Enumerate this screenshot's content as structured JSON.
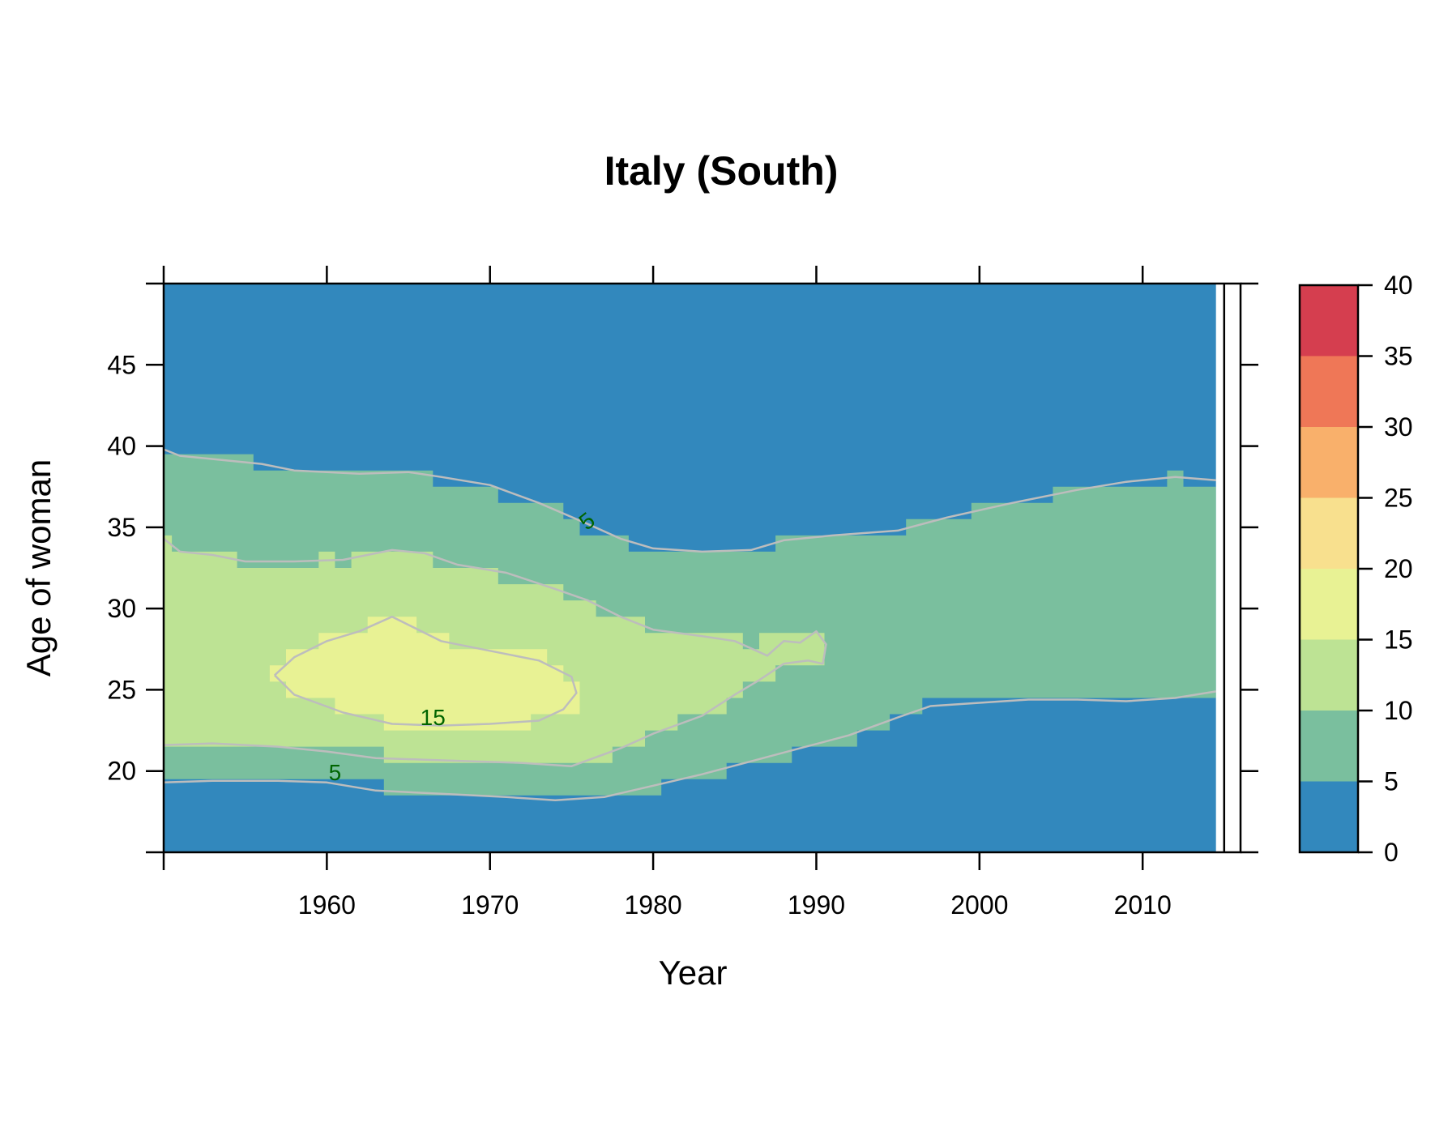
{
  "chart_data": {
    "type": "heatmap",
    "title": "Italy (South)",
    "xlabel": "Year",
    "ylabel": "Age of woman",
    "xlim": [
      1950,
      2016
    ],
    "ylim": [
      15,
      50
    ],
    "xticks": [
      1960,
      1970,
      1980,
      1990,
      2000,
      2010
    ],
    "yticks": [
      20,
      25,
      30,
      35,
      40,
      45
    ],
    "data_end_year": 2014.5,
    "colorbar": {
      "breaks": [
        0,
        5,
        10,
        15,
        20,
        25,
        30,
        35,
        40
      ],
      "tick_labels": [
        "0",
        "5",
        "10",
        "15",
        "20",
        "25",
        "30",
        "35",
        "40"
      ],
      "colors": [
        "#3288bd",
        "#7abf9e",
        "#bde394",
        "#e8f294",
        "#f8e08e",
        "#f9b06b",
        "#ef7757",
        "#d53e4f"
      ]
    },
    "background_color": "#3288bd",
    "regions": [
      {
        "level": "5-10",
        "color": "#7abf9e",
        "upper_bound": [
          [
            1950,
            39.5
          ],
          [
            1955.5,
            39.5
          ],
          [
            1955.5,
            38.5
          ],
          [
            1966.5,
            38.5
          ],
          [
            1966.5,
            37.5
          ],
          [
            1970.5,
            37.5
          ],
          [
            1970.5,
            36.5
          ],
          [
            1974.5,
            36.5
          ],
          [
            1974.5,
            35.5
          ],
          [
            1975.5,
            35.5
          ],
          [
            1975.5,
            34.5
          ],
          [
            1978.5,
            34.5
          ],
          [
            1978.5,
            33.5
          ],
          [
            1987.5,
            33.5
          ],
          [
            1987.5,
            34.5
          ],
          [
            1995.5,
            34.5
          ],
          [
            1995.5,
            35.5
          ],
          [
            1999.5,
            35.5
          ],
          [
            1999.5,
            36.5
          ],
          [
            2004.5,
            36.5
          ],
          [
            2004.5,
            37.5
          ],
          [
            2011.5,
            37.5
          ],
          [
            2011.5,
            38.5
          ],
          [
            2012.5,
            38.5
          ],
          [
            2012.5,
            37.5
          ],
          [
            2014.5,
            37.5
          ]
        ],
        "lower_bound": [
          [
            1950,
            19.5
          ],
          [
            1963.5,
            19.5
          ],
          [
            1963.5,
            18.5
          ],
          [
            1980.5,
            18.5
          ],
          [
            1980.5,
            19.5
          ],
          [
            1984.5,
            19.5
          ],
          [
            1984.5,
            20.5
          ],
          [
            1988.5,
            20.5
          ],
          [
            1988.5,
            21.5
          ],
          [
            1992.5,
            21.5
          ],
          [
            1992.5,
            22.5
          ],
          [
            1994.5,
            22.5
          ],
          [
            1994.5,
            23.5
          ],
          [
            1996.5,
            23.5
          ],
          [
            1996.5,
            24.5
          ],
          [
            2014.5,
            24.5
          ]
        ]
      },
      {
        "level": "10-15",
        "color": "#bde394",
        "outline": [
          [
            1950,
            34.5
          ],
          [
            1950.5,
            34.5
          ],
          [
            1950.5,
            33.5
          ],
          [
            1954.5,
            33.5
          ],
          [
            1954.5,
            32.5
          ],
          [
            1959.5,
            32.5
          ],
          [
            1959.5,
            33.5
          ],
          [
            1960.5,
            33.5
          ],
          [
            1960.5,
            32.5
          ],
          [
            1961.5,
            32.5
          ],
          [
            1961.5,
            33.5
          ],
          [
            1966.5,
            33.5
          ],
          [
            1966.5,
            32.5
          ],
          [
            1970.5,
            32.5
          ],
          [
            1970.5,
            31.5
          ],
          [
            1974.5,
            31.5
          ],
          [
            1974.5,
            30.5
          ],
          [
            1976.5,
            30.5
          ],
          [
            1976.5,
            29.5
          ],
          [
            1979.5,
            29.5
          ],
          [
            1979.5,
            28.5
          ],
          [
            1985.5,
            28.5
          ],
          [
            1985.5,
            27.5
          ],
          [
            1986.5,
            27.5
          ],
          [
            1986.5,
            28.5
          ],
          [
            1990.5,
            28.5
          ],
          [
            1990.5,
            26.5
          ],
          [
            1987.5,
            26.5
          ],
          [
            1987.5,
            25.5
          ],
          [
            1985.5,
            25.5
          ],
          [
            1985.5,
            24.5
          ],
          [
            1984.5,
            24.5
          ],
          [
            1984.5,
            23.5
          ],
          [
            1981.5,
            23.5
          ],
          [
            1981.5,
            22.5
          ],
          [
            1979.5,
            22.5
          ],
          [
            1979.5,
            21.5
          ],
          [
            1977.5,
            21.5
          ],
          [
            1977.5,
            20.5
          ],
          [
            1963.5,
            20.5
          ],
          [
            1963.5,
            21.5
          ],
          [
            1950,
            21.5
          ]
        ]
      },
      {
        "level": "15-20",
        "color": "#e8f294",
        "outline": [
          [
            1956.5,
            25.5
          ],
          [
            1956.5,
            26.5
          ],
          [
            1957.5,
            26.5
          ],
          [
            1957.5,
            27.5
          ],
          [
            1959.5,
            27.5
          ],
          [
            1959.5,
            28.5
          ],
          [
            1962.5,
            28.5
          ],
          [
            1962.5,
            29.5
          ],
          [
            1965.5,
            29.5
          ],
          [
            1965.5,
            28.5
          ],
          [
            1967.5,
            28.5
          ],
          [
            1967.5,
            27.5
          ],
          [
            1973.5,
            27.5
          ],
          [
            1973.5,
            26.5
          ],
          [
            1974.5,
            26.5
          ],
          [
            1974.5,
            25.5
          ],
          [
            1975.5,
            25.5
          ],
          [
            1975.5,
            23.5
          ],
          [
            1972.5,
            23.5
          ],
          [
            1972.5,
            22.5
          ],
          [
            1963.5,
            22.5
          ],
          [
            1963.5,
            23.5
          ],
          [
            1960.5,
            23.5
          ],
          [
            1960.5,
            24.5
          ],
          [
            1957.5,
            24.5
          ],
          [
            1957.5,
            25.5
          ]
        ]
      }
    ],
    "contours": [
      {
        "level": 5,
        "points": [
          [
            1950,
            39.8
          ],
          [
            1951,
            39.4
          ],
          [
            1953,
            39.2
          ],
          [
            1956,
            38.9
          ],
          [
            1958,
            38.5
          ],
          [
            1962,
            38.3
          ],
          [
            1965,
            38.4
          ],
          [
            1967,
            38.1
          ],
          [
            1970,
            37.6
          ],
          [
            1973,
            36.5
          ],
          [
            1976,
            35.2
          ],
          [
            1978,
            34.3
          ],
          [
            1980,
            33.7
          ],
          [
            1983,
            33.5
          ],
          [
            1986,
            33.6
          ],
          [
            1988,
            34.2
          ],
          [
            1991,
            34.5
          ],
          [
            1995,
            34.8
          ],
          [
            1998,
            35.6
          ],
          [
            2002,
            36.5
          ],
          [
            2006,
            37.3
          ],
          [
            2009,
            37.8
          ],
          [
            2012,
            38.1
          ],
          [
            2014.5,
            37.9
          ]
        ]
      },
      {
        "level": 5,
        "points": [
          [
            1950,
            19.3
          ],
          [
            1953,
            19.4
          ],
          [
            1957,
            19.4
          ],
          [
            1960,
            19.3
          ],
          [
            1963,
            18.8
          ],
          [
            1967,
            18.6
          ],
          [
            1971,
            18.4
          ],
          [
            1974,
            18.2
          ],
          [
            1977,
            18.4
          ],
          [
            1980,
            19.1
          ],
          [
            1983,
            19.8
          ],
          [
            1986,
            20.6
          ],
          [
            1989,
            21.4
          ],
          [
            1992,
            22.2
          ],
          [
            1995,
            23.3
          ],
          [
            1997,
            24.0
          ],
          [
            2000,
            24.2
          ],
          [
            2003,
            24.4
          ],
          [
            2006,
            24.4
          ],
          [
            2009,
            24.3
          ],
          [
            2012,
            24.5
          ],
          [
            2014.5,
            24.9
          ]
        ]
      },
      {
        "level": 10,
        "points": [
          [
            1950,
            34.3
          ],
          [
            1951,
            33.5
          ],
          [
            1953,
            33.3
          ],
          [
            1955,
            32.9
          ],
          [
            1958,
            32.9
          ],
          [
            1961,
            33.0
          ],
          [
            1964,
            33.6
          ],
          [
            1966,
            33.4
          ],
          [
            1968,
            32.7
          ],
          [
            1971,
            32.2
          ],
          [
            1974,
            31.2
          ],
          [
            1976,
            30.5
          ],
          [
            1978,
            29.5
          ],
          [
            1980,
            28.7
          ],
          [
            1983,
            28.3
          ],
          [
            1985,
            28.0
          ],
          [
            1987,
            27.1
          ],
          [
            1988,
            28.0
          ],
          [
            1989,
            27.9
          ],
          [
            1990,
            28.6
          ],
          [
            1990.6,
            27.8
          ],
          [
            1990.4,
            26.6
          ],
          [
            1989.5,
            26.8
          ],
          [
            1988,
            26.6
          ],
          [
            1986.5,
            25.6
          ],
          [
            1985,
            24.7
          ],
          [
            1983,
            23.4
          ],
          [
            1980,
            22.3
          ],
          [
            1978,
            21.4
          ],
          [
            1975,
            20.3
          ],
          [
            1972,
            20.5
          ],
          [
            1969,
            20.6
          ],
          [
            1966,
            20.7
          ],
          [
            1963,
            20.8
          ],
          [
            1960,
            21.2
          ],
          [
            1957,
            21.5
          ],
          [
            1953,
            21.7
          ],
          [
            1950,
            21.6
          ]
        ]
      },
      {
        "level": 15,
        "points": [
          [
            1956.8,
            25.9
          ],
          [
            1958,
            27.0
          ],
          [
            1960,
            28.0
          ],
          [
            1962,
            28.6
          ],
          [
            1964,
            29.5
          ],
          [
            1965,
            29.0
          ],
          [
            1967,
            28.0
          ],
          [
            1970,
            27.4
          ],
          [
            1973,
            26.8
          ],
          [
            1975,
            25.8
          ],
          [
            1975.3,
            24.8
          ],
          [
            1974.5,
            23.8
          ],
          [
            1973,
            23.1
          ],
          [
            1970,
            22.9
          ],
          [
            1967,
            22.8
          ],
          [
            1964,
            22.9
          ],
          [
            1961,
            23.6
          ],
          [
            1958,
            24.7
          ],
          [
            1956.8,
            25.9
          ]
        ]
      }
    ],
    "contour_labels": [
      {
        "text": "5",
        "x": 1976,
        "y": 35.3,
        "angle": -38
      },
      {
        "text": "15",
        "x": 1966.5,
        "y": 23.2,
        "angle": 0
      },
      {
        "text": "5",
        "x": 1960.5,
        "y": 19.8,
        "angle": 0
      }
    ]
  }
}
